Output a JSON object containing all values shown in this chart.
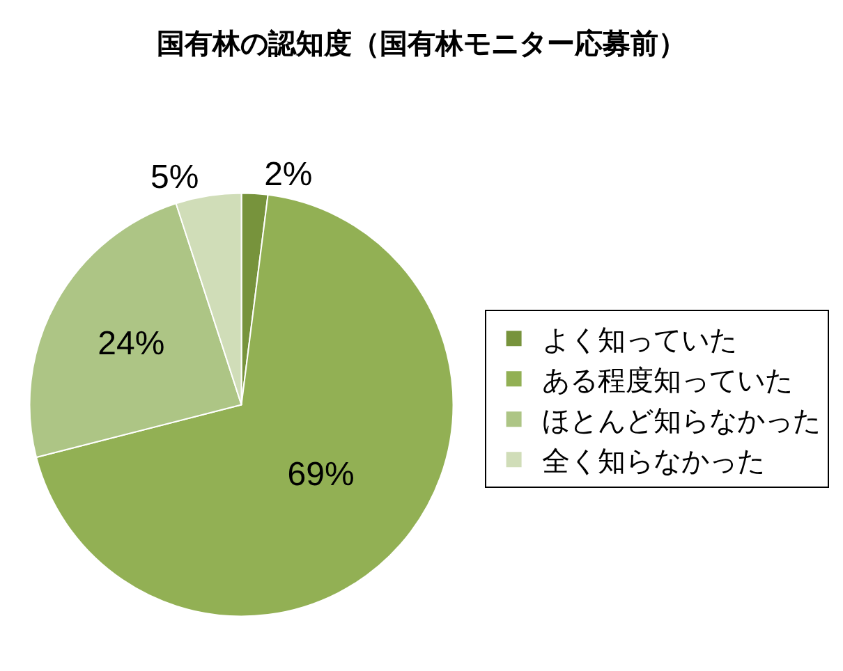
{
  "chart_data": {
    "type": "pie",
    "title": "国有林の認知度（国有林モニター応募前）",
    "categories": [
      "よく知っていた",
      "ある程度知っていた",
      "ほとんど知らなかった",
      "全く知らなかった"
    ],
    "values": [
      2,
      69,
      24,
      5
    ],
    "value_labels": [
      "2%",
      "69%",
      "24%",
      "5%"
    ],
    "colors": [
      "#77933c",
      "#92b054",
      "#adc585",
      "#d0ddb8"
    ],
    "legend": "right"
  }
}
